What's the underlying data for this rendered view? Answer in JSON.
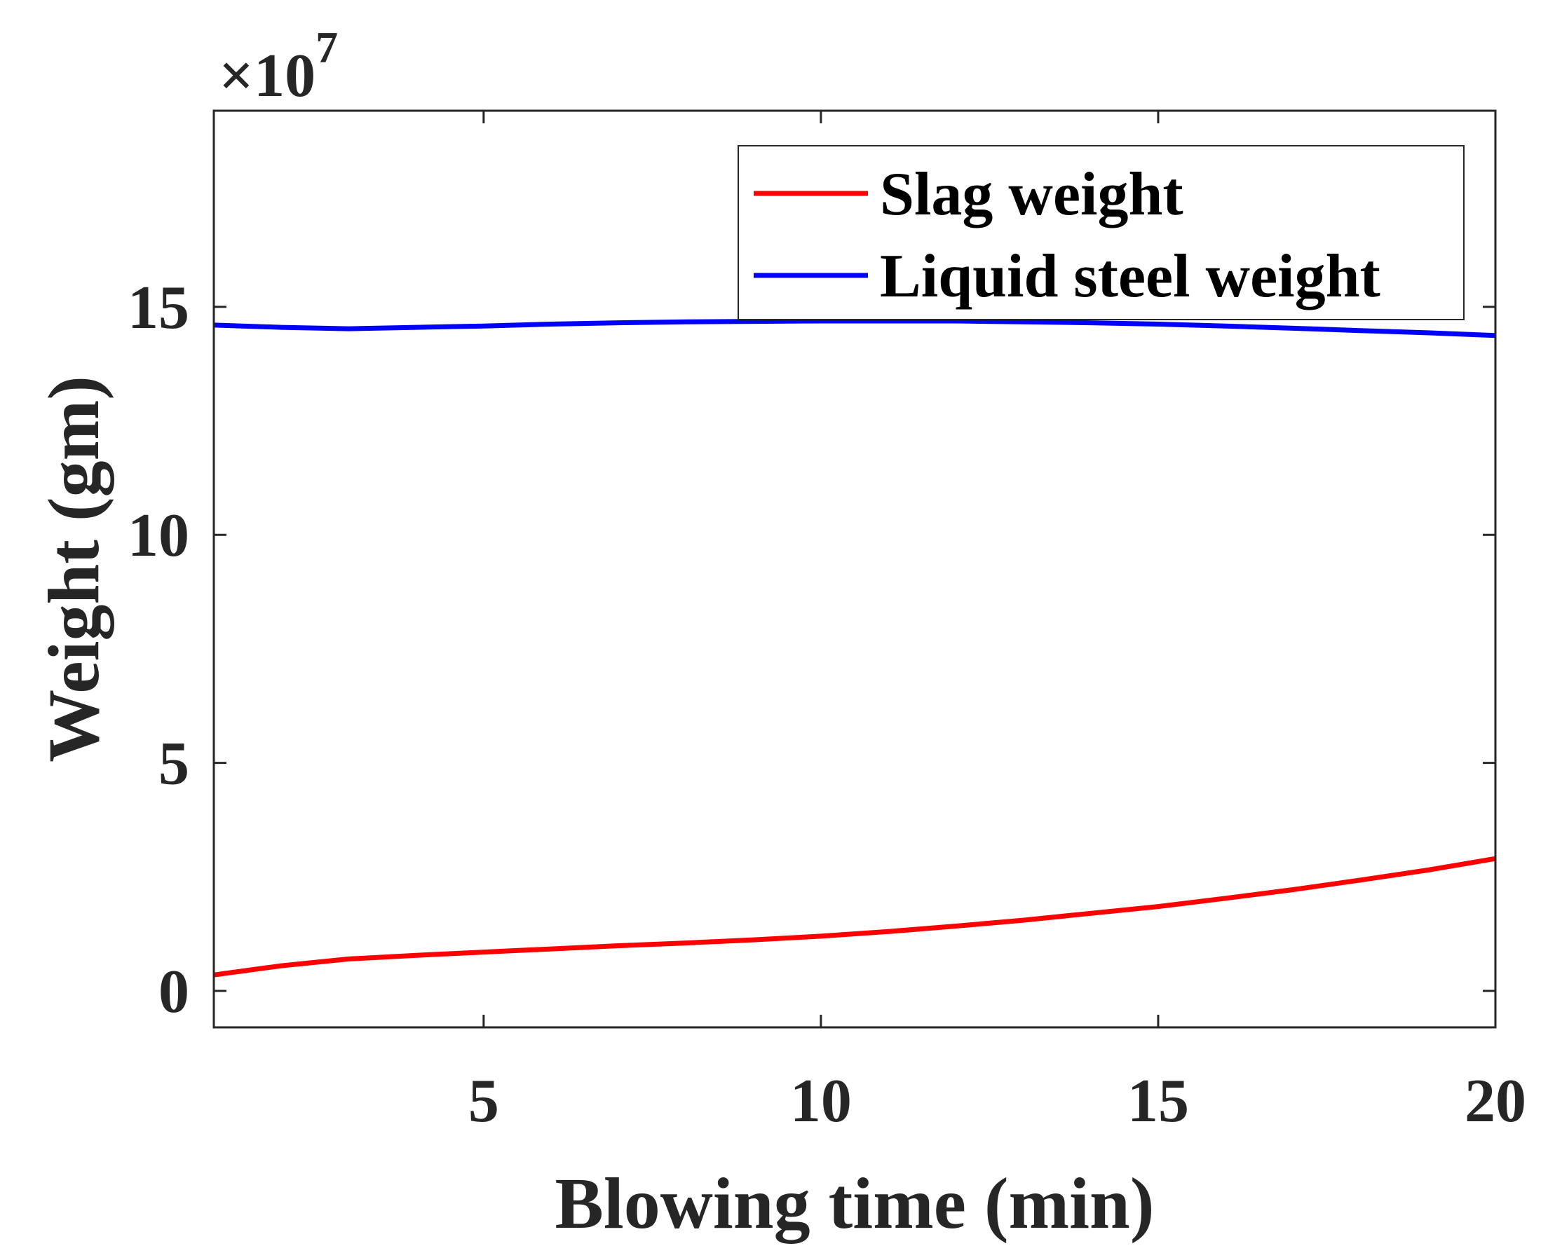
{
  "chart_data": {
    "type": "line",
    "title": "",
    "xlabel": "Blowing time (min)",
    "ylabel": "Weight (gm)",
    "y_exponent_label": "×10",
    "y_exponent_power": "7",
    "xlim": [
      1,
      20
    ],
    "ylim": [
      -0.8,
      19.3
    ],
    "xticks": [
      5,
      10,
      15,
      20
    ],
    "xtick_labels": [
      "5",
      "10",
      "15",
      "20"
    ],
    "yticks": [
      0,
      5,
      10,
      15
    ],
    "ytick_labels": [
      "0",
      "5",
      "10",
      "15"
    ],
    "grid": false,
    "legend_position": "top-right",
    "series": [
      {
        "name": "Slag weight",
        "color": "#ff0000",
        "x": [
          1,
          2,
          3,
          4,
          5,
          6,
          7,
          8,
          9,
          10,
          11,
          12,
          13,
          14,
          15,
          16,
          17,
          18,
          19,
          20
        ],
        "y": [
          0.35,
          0.55,
          0.7,
          0.78,
          0.85,
          0.92,
          0.99,
          1.05,
          1.12,
          1.2,
          1.3,
          1.42,
          1.55,
          1.7,
          1.85,
          2.03,
          2.22,
          2.43,
          2.65,
          2.9
        ]
      },
      {
        "name": "Liquid steel weight",
        "color": "#0000ff",
        "x": [
          1,
          2,
          3,
          4,
          5,
          6,
          7,
          8,
          9,
          10,
          11,
          12,
          13,
          14,
          15,
          16,
          17,
          18,
          19,
          20
        ],
        "y": [
          14.6,
          14.55,
          14.52,
          14.55,
          14.58,
          14.62,
          14.65,
          14.67,
          14.68,
          14.69,
          14.69,
          14.69,
          14.67,
          14.65,
          14.62,
          14.58,
          14.53,
          14.48,
          14.43,
          14.37
        ]
      }
    ]
  }
}
